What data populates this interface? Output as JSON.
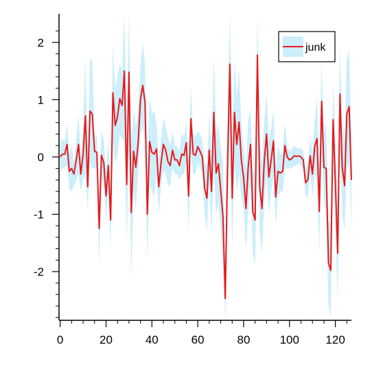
{
  "chart_data": {
    "type": "line",
    "title": "",
    "xlabel": "",
    "ylabel": "",
    "xlim": [
      -0.5,
      127
    ],
    "ylim": [
      -2.85,
      2.5
    ],
    "xticks": [
      0,
      20,
      40,
      60,
      80,
      100,
      120
    ],
    "yticks": [
      -2,
      -1,
      0,
      1,
      2
    ],
    "xtick_labels": [
      "0",
      "20",
      "40",
      "60",
      "80",
      "100",
      "120"
    ],
    "ytick_labels": [
      "-2",
      "-1",
      "0",
      "1",
      "2"
    ],
    "grid": false,
    "legend_position": "top-right",
    "colors": {
      "line": "#e8191a",
      "band": "#cdeefb",
      "axis": "#000000"
    },
    "series": [
      {
        "name": "junk",
        "x": [
          0,
          1,
          2,
          3,
          4,
          5,
          6,
          7,
          8,
          9,
          10,
          11,
          12,
          13,
          14,
          15,
          16,
          17,
          18,
          19,
          20,
          21,
          22,
          23,
          24,
          25,
          26,
          27,
          28,
          29,
          30,
          31,
          32,
          33,
          34,
          35,
          36,
          37,
          38,
          39,
          40,
          41,
          42,
          43,
          44,
          45,
          46,
          47,
          48,
          49,
          50,
          51,
          52,
          53,
          54,
          55,
          56,
          57,
          58,
          59,
          60,
          61,
          62,
          63,
          64,
          65,
          66,
          67,
          68,
          69,
          70,
          71,
          72,
          73,
          74,
          75,
          76,
          77,
          78,
          79,
          80,
          81,
          82,
          83,
          84,
          85,
          86,
          87,
          88,
          89,
          90,
          91,
          92,
          93,
          94,
          95,
          96,
          97,
          98,
          99,
          100,
          101,
          102,
          103,
          104,
          105,
          106,
          107,
          108,
          109,
          110,
          111,
          112,
          113,
          114,
          115,
          116,
          117,
          118,
          119,
          120,
          121,
          122,
          123,
          124,
          125,
          126,
          127
        ],
        "y": [
          0.0,
          0.05,
          0.05,
          0.22,
          -0.25,
          -0.2,
          -0.3,
          -0.05,
          0.22,
          -0.3,
          0.05,
          0.72,
          -0.52,
          0.8,
          0.75,
          0.1,
          0.08,
          -1.25,
          0.03,
          -0.1,
          -0.68,
          -0.15,
          -1.1,
          1.12,
          0.55,
          0.7,
          1.02,
          0.9,
          1.5,
          -0.48,
          1.48,
          -0.97,
          0.1,
          -0.18,
          0.25,
          1.0,
          1.25,
          0.95,
          -1.0,
          0.27,
          0.08,
          0.05,
          0.14,
          -0.52,
          -0.1,
          0.22,
          0.12,
          -0.08,
          -0.15,
          0.12,
          -0.05,
          -0.05,
          -0.15,
          0.05,
          0.03,
          0.25,
          -0.68,
          0.67,
          0.05,
          0.03,
          0.18,
          0.1,
          0.0,
          -0.55,
          -0.72,
          0.12,
          -0.6,
          0.78,
          -0.28,
          -0.12,
          -0.58,
          -1.05,
          -2.47,
          -0.1,
          1.62,
          -0.72,
          0.78,
          0.22,
          0.61,
          -0.05,
          -0.37,
          -0.9,
          -0.18,
          0.22,
          -0.95,
          -1.1,
          1.78,
          -0.52,
          -0.9,
          -0.07,
          0.4,
          -0.35,
          -0.05,
          0.28,
          -0.7,
          -0.25,
          -0.28,
          -0.25,
          0.2,
          0.0,
          -0.05,
          -0.03,
          0.02,
          0.01,
          0.02,
          0.0,
          -0.05,
          -0.45,
          -0.4,
          0.02,
          -0.3,
          0.18,
          0.32,
          -0.95,
          0.97,
          -0.18,
          -0.2,
          -1.85,
          -1.98,
          0.65,
          -0.45,
          -1.68,
          1.1,
          -0.18,
          -0.5,
          0.75,
          0.88,
          -0.4
        ]
      }
    ],
    "error_band": {
      "lower": [
        -0.25,
        -0.2,
        -0.18,
        -0.15,
        -0.55,
        -0.6,
        -0.5,
        -0.4,
        -0.3,
        -0.6,
        -0.4,
        -0.3,
        -0.9,
        -0.1,
        -0.2,
        -0.2,
        -0.2,
        -1.9,
        -0.4,
        -0.5,
        -1.1,
        -0.6,
        -1.6,
        0.25,
        -0.1,
        0.0,
        0.4,
        0.3,
        0.3,
        -1.5,
        0.3,
        -2.1,
        -0.6,
        -0.9,
        -0.3,
        0.4,
        0.5,
        0.3,
        -1.8,
        -0.5,
        -0.6,
        -0.7,
        -0.3,
        -1.0,
        -0.5,
        -0.25,
        -0.3,
        -0.5,
        -0.5,
        -0.2,
        -0.3,
        -0.3,
        -0.4,
        -0.3,
        -0.3,
        -0.1,
        -1.3,
        0.1,
        -0.3,
        -0.3,
        -0.1,
        -0.2,
        -0.3,
        -1.0,
        -1.3,
        -0.5,
        -1.3,
        -0.2,
        -1.0,
        -0.8,
        -1.3,
        -2.0,
        -2.85,
        -1.0,
        0.6,
        -1.6,
        -0.1,
        -0.6,
        -0.3,
        -0.7,
        -0.9,
        -1.6,
        -1.0,
        -0.4,
        -1.7,
        -1.9,
        0.6,
        -1.3,
        -1.7,
        -0.8,
        -0.3,
        -1.0,
        -0.6,
        -0.3,
        -1.2,
        -0.7,
        -0.6,
        -0.6,
        -0.2,
        -0.2,
        -0.2,
        -0.2,
        -0.15,
        -0.15,
        -0.1,
        -0.15,
        -0.2,
        -0.7,
        -0.7,
        -0.3,
        -0.7,
        -0.3,
        -0.4,
        -1.7,
        0.3,
        -0.8,
        -1.0,
        -2.6,
        -2.8,
        0.0,
        -1.3,
        -2.5,
        0.3,
        -1.0,
        -1.3,
        -0.2,
        -0.1,
        -1.2
      ]
    },
    "legend_entries": [
      "junk"
    ]
  }
}
